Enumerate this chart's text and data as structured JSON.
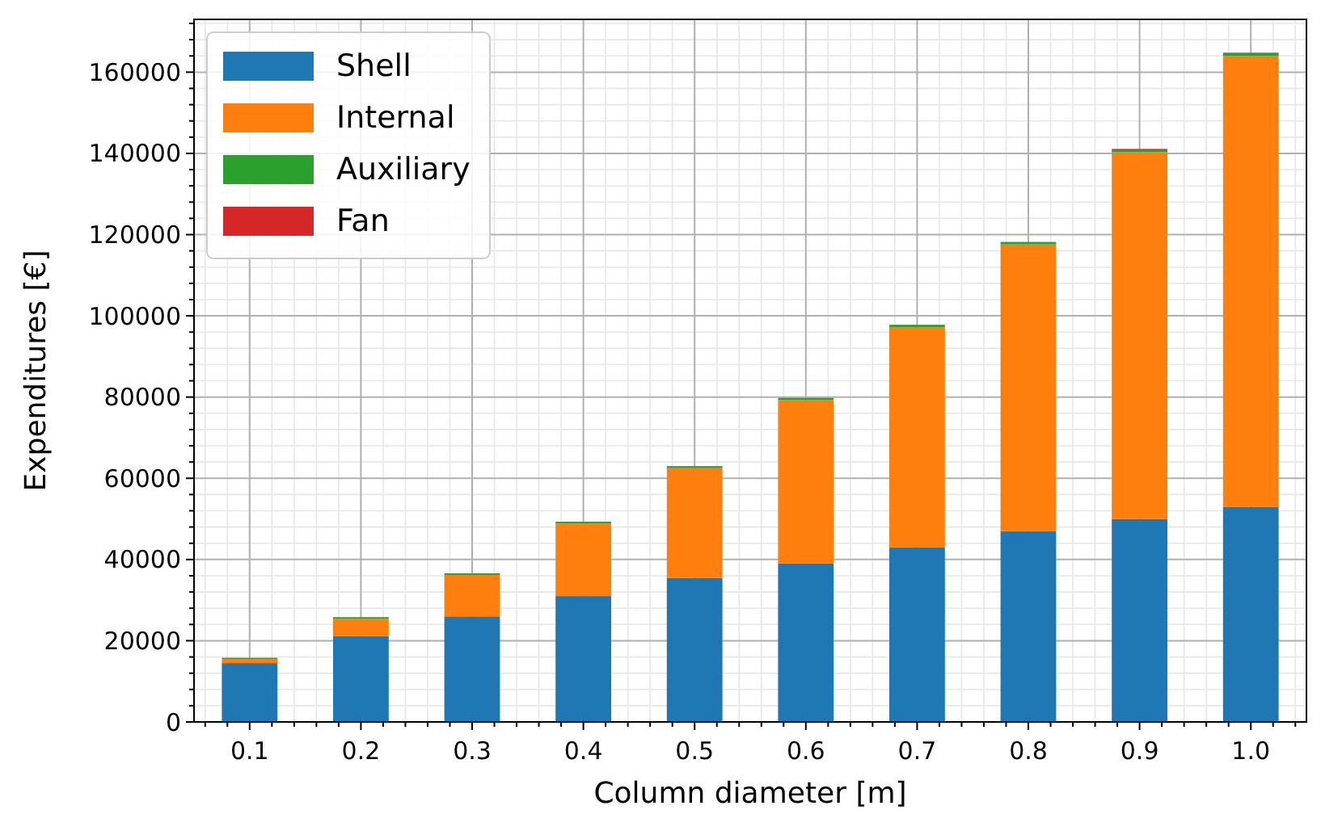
{
  "chart_data": {
    "type": "bar",
    "stacked": true,
    "xlabel": "Column diameter [m]",
    "ylabel": "Expenditures [€]",
    "categories": [
      "0.1",
      "0.2",
      "0.3",
      "0.4",
      "0.5",
      "0.6",
      "0.7",
      "0.8",
      "0.9",
      "1.0"
    ],
    "series": [
      {
        "name": "Shell",
        "color": "#1f77b4",
        "values": [
          14500,
          21100,
          26000,
          31000,
          35500,
          39000,
          43000,
          47000,
          50000,
          53000
        ]
      },
      {
        "name": "Internal",
        "color": "#ff7f0e",
        "values": [
          1000,
          4300,
          10200,
          17900,
          27000,
          40300,
          54200,
          70600,
          90300,
          111000
        ]
      },
      {
        "name": "Auxiliary",
        "color": "#2ca02c",
        "values": [
          300,
          400,
          400,
          400,
          500,
          500,
          600,
          600,
          500,
          800
        ]
      },
      {
        "name": "Fan",
        "color": "#d62728",
        "values": [
          null,
          null,
          null,
          null,
          null,
          null,
          null,
          null,
          300,
          null
        ]
      }
    ],
    "ylim": [
      0,
      173000
    ],
    "yticks": [
      0,
      20000,
      40000,
      60000,
      80000,
      100000,
      120000,
      140000,
      160000
    ],
    "grid": true,
    "legend": "top left"
  }
}
